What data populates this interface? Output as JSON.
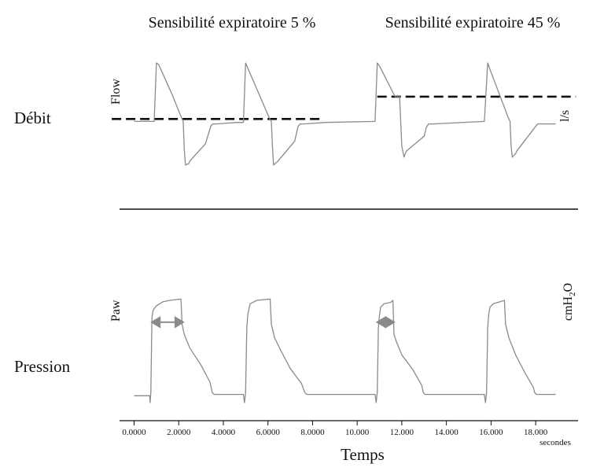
{
  "chart_data": [
    {
      "type": "line",
      "panel": "Débit",
      "row_label": "Débit",
      "signal_label": "Flow",
      "unit_label": "l/s",
      "x_unit": "seconds",
      "series": [
        {
          "name": "Flow",
          "x": [
            0.0,
            0.9,
            1.0,
            1.1,
            1.7,
            2.1,
            2.2,
            2.25,
            2.3,
            2.45,
            2.5,
            3.2,
            3.45,
            3.55,
            3.7,
            4.6,
            4.9,
            5.0,
            5.6,
            6.05,
            6.15,
            6.2,
            6.25,
            6.4,
            6.45,
            7.2,
            7.35,
            7.45,
            7.6,
            8.6,
            10.8,
            10.9,
            11.0,
            11.7,
            11.8,
            11.9,
            11.95,
            12.0,
            12.1,
            12.2,
            13.0,
            13.1,
            13.2,
            13.4,
            15.7,
            15.85,
            15.95,
            16.5,
            16.75,
            16.85,
            16.9,
            16.95,
            17.1,
            17.15,
            18.0,
            18.1,
            18.2,
            18.9
          ],
          "y": [
            0.0,
            0.0,
            1.18,
            1.15,
            0.55,
            0.1,
            0.0,
            -0.55,
            -0.88,
            -0.85,
            -0.8,
            -0.45,
            -0.08,
            -0.05,
            -0.05,
            -0.02,
            -0.02,
            1.18,
            0.55,
            0.08,
            0.0,
            -0.5,
            -0.88,
            -0.82,
            -0.8,
            -0.4,
            -0.1,
            -0.05,
            -0.05,
            -0.02,
            0.0,
            1.18,
            1.12,
            0.5,
            0.5,
            0.5,
            0.0,
            -0.5,
            -0.72,
            -0.6,
            -0.3,
            -0.12,
            -0.05,
            -0.05,
            0.0,
            1.18,
            1.05,
            0.4,
            0.1,
            0.0,
            -0.5,
            -0.72,
            -0.65,
            -0.6,
            -0.1,
            -0.05,
            -0.05,
            -0.05
          ]
        }
      ],
      "thresholds": [
        {
          "x": [
            -1.0,
            8.5
          ],
          "y": 0.05
        },
        {
          "x": [
            10.9,
            19.8
          ],
          "y": 0.5
        }
      ],
      "ylim": [
        -1.2,
        1.5
      ]
    },
    {
      "type": "line",
      "panel": "Pression",
      "row_label": "Pression",
      "signal_label": "Paw",
      "unit_label": "cmH2O",
      "unit_text": {
        "base": "cmH",
        "sub": "2",
        "tail": "O"
      },
      "xlabel": "Temps",
      "x_unit_label": "secondes",
      "x_ticks": [
        "0.0000",
        "2.0000",
        "4.0000",
        "6.0000",
        "8.0000",
        "10.000",
        "12.000",
        "14.000",
        "16.000",
        "18.000"
      ],
      "x_tick_values": [
        0,
        2,
        4,
        6,
        8,
        10,
        12,
        14,
        16,
        18
      ],
      "xlim": [
        -0.3,
        19.9
      ],
      "series": [
        {
          "name": "Paw",
          "x": [
            0.0,
            0.7,
            0.72,
            0.75,
            0.8,
            0.85,
            0.9,
            1.0,
            1.3,
            1.6,
            2.1,
            2.15,
            2.25,
            2.5,
            3.0,
            3.4,
            3.5,
            3.55,
            3.6,
            4.0,
            4.5,
            4.9,
            4.95,
            5.0,
            5.05,
            5.1,
            5.2,
            5.5,
            6.1,
            6.15,
            6.3,
            6.6,
            7.0,
            7.5,
            7.65,
            7.7,
            7.75,
            8.0,
            9.0,
            10.0,
            10.8,
            10.85,
            10.9,
            10.95,
            11.0,
            11.05,
            11.2,
            11.5,
            11.6,
            11.65,
            11.75,
            12.0,
            12.5,
            12.9,
            12.95,
            13.0,
            13.05,
            13.5,
            14.5,
            15.0,
            15.7,
            15.75,
            15.8,
            15.85,
            15.9,
            15.95,
            16.1,
            16.4,
            16.6,
            16.65,
            16.8,
            17.1,
            17.5,
            17.9,
            17.95,
            18.0,
            18.05,
            18.5,
            18.9
          ],
          "y": [
            0.0,
            0.0,
            -1.0,
            0.5,
            11.5,
            12.5,
            12.8,
            13.2,
            13.8,
            14.0,
            14.2,
            10.5,
            9.0,
            7.0,
            4.5,
            2.0,
            0.5,
            0.3,
            0.2,
            0.2,
            0.2,
            0.2,
            -1.0,
            0.5,
            10.0,
            12.0,
            13.5,
            14.0,
            14.2,
            10.5,
            8.5,
            6.5,
            4.0,
            1.8,
            0.5,
            0.3,
            0.2,
            0.2,
            0.2,
            0.2,
            0.2,
            -1.0,
            0.5,
            10.0,
            11.8,
            13.0,
            13.5,
            13.7,
            14.0,
            9.0,
            8.0,
            6.0,
            3.8,
            1.5,
            0.6,
            0.3,
            0.2,
            0.2,
            0.2,
            0.2,
            0.2,
            -1.0,
            0.5,
            10.0,
            12.0,
            13.0,
            13.5,
            13.8,
            14.0,
            10.5,
            8.5,
            6.0,
            3.5,
            1.2,
            0.5,
            0.3,
            0.2,
            0.2,
            0.2
          ]
        }
      ],
      "markers": [
        {
          "type": "double-arrow",
          "x": [
            0.8,
            2.2
          ],
          "y": 10.8
        },
        {
          "type": "double-arrow",
          "x": [
            10.9,
            11.65
          ],
          "y": 10.8
        }
      ],
      "ylim": [
        -2.5,
        20.0
      ]
    }
  ],
  "column_titles": [
    "Sensibilité expiratoire 5 %",
    "Sensibilité expiratoire 45 %"
  ]
}
